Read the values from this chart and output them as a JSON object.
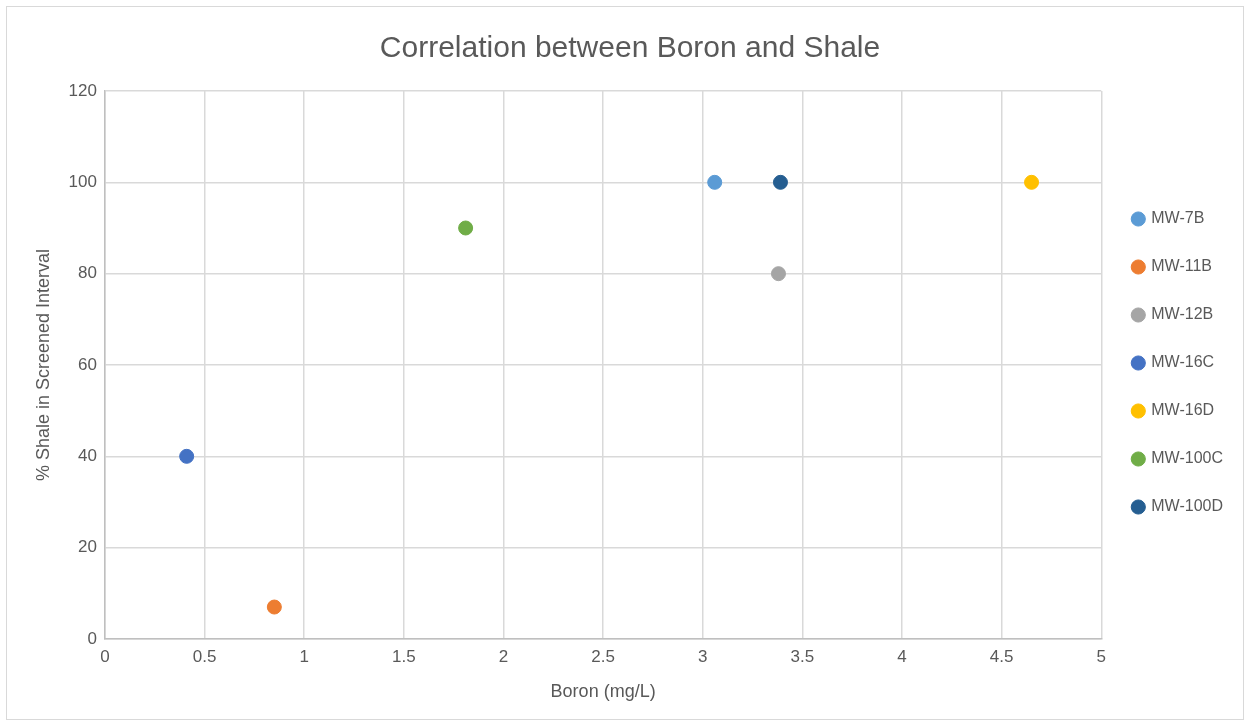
{
  "chart_data": {
    "type": "scatter",
    "title": "Correlation between Boron and Shale",
    "xlabel": "Boron (mg/L)",
    "ylabel": "% Shale in Screened Interval",
    "xlim": [
      0,
      5
    ],
    "xticks": [
      0,
      0.5,
      1,
      1.5,
      2,
      2.5,
      3,
      3.5,
      4,
      4.5,
      5
    ],
    "ylim": [
      0,
      120
    ],
    "yticks": [
      0,
      20,
      40,
      60,
      80,
      100,
      120
    ],
    "grid": true,
    "legend": "right",
    "marker": "circle",
    "series": [
      {
        "name": "MW-7B",
        "color": "#5b9bd5",
        "x": [
          3.06
        ],
        "values": [
          100
        ]
      },
      {
        "name": "MW-11B",
        "color": "#ed7d31",
        "x": [
          0.85
        ],
        "values": [
          7
        ]
      },
      {
        "name": "MW-12B",
        "color": "#a5a5a5",
        "x": [
          3.38
        ],
        "values": [
          80
        ]
      },
      {
        "name": "MW-16C",
        "color": "#4472c4",
        "x": [
          0.41
        ],
        "values": [
          40
        ]
      },
      {
        "name": "MW-16D",
        "color": "#ffc000",
        "x": [
          4.65
        ],
        "values": [
          100
        ]
      },
      {
        "name": "MW-100C",
        "color": "#70ad47",
        "x": [
          1.81
        ],
        "values": [
          90
        ]
      },
      {
        "name": "MW-100D",
        "color": "#255e91",
        "x": [
          3.39
        ],
        "values": [
          100
        ]
      }
    ]
  }
}
